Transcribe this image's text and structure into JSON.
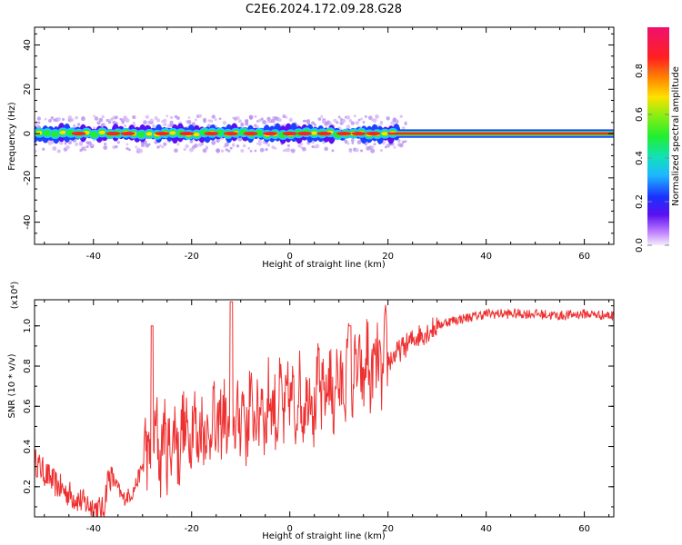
{
  "title": "C2E6.2024.172.09.28.G28",
  "chart_data": [
    {
      "type": "heatmap",
      "xlabel": "Height of straight line (km)",
      "ylabel": "Frequency (Hz)",
      "xlim": [
        -52,
        66
      ],
      "ylim": [
        -50,
        48
      ],
      "xticks": [
        -40,
        -20,
        0,
        20,
        40,
        60
      ],
      "yticks": [
        -40,
        -20,
        0,
        20,
        40
      ],
      "colorbar": {
        "label": "Normalized spectral amplitude",
        "range": [
          0.0,
          1.0
        ],
        "ticks": [
          0.0,
          0.2,
          0.4,
          0.6,
          0.8
        ],
        "colormap": "rainbow (purple-blue-cyan-green-yellow-red-magenta)"
      },
      "annotations": [
        "Spectral band centred near 0 Hz; broad (about ±4 Hz) and patchy below 20 km, narrow (about ±1.5 Hz) and steady above 20 km"
      ]
    },
    {
      "type": "line",
      "xlabel": "Height of straight line (km)",
      "ylabel": "SNR (10 * v/v)",
      "y_multiplier": "(x10⁴)",
      "xlim": [
        -52,
        66
      ],
      "ylim": [
        0.05,
        1.13
      ],
      "xticks": [
        -40,
        -20,
        0,
        20,
        40,
        60
      ],
      "yticks": [
        0.2,
        0.4,
        0.6,
        0.8,
        1.0
      ],
      "series": [
        {
          "color": "#ee3030",
          "x": [
            -52,
            -50,
            -48,
            -46,
            -44,
            -42,
            -40,
            -38,
            -37,
            -36,
            -34,
            -32,
            -30,
            -28,
            -26,
            -24,
            -22,
            -20,
            -18,
            -16,
            -14,
            -12,
            -10,
            -8,
            -6,
            -4,
            -2,
            0,
            2,
            4,
            6,
            8,
            10,
            12,
            14,
            16,
            18,
            20,
            22,
            24,
            26,
            28,
            30,
            32,
            34,
            36,
            38,
            40,
            45,
            50,
            55,
            60,
            66
          ],
          "y": [
            0.33,
            0.27,
            0.22,
            0.18,
            0.15,
            0.12,
            0.1,
            0.08,
            0.25,
            0.24,
            0.14,
            0.17,
            0.3,
            0.45,
            0.4,
            0.42,
            0.45,
            0.5,
            0.47,
            0.5,
            0.52,
            0.55,
            0.55,
            0.56,
            0.58,
            0.6,
            0.6,
            0.62,
            0.63,
            0.65,
            0.67,
            0.68,
            0.7,
            0.74,
            0.76,
            0.78,
            0.8,
            0.82,
            0.87,
            0.91,
            0.95,
            0.97,
            1.0,
            1.02,
            1.03,
            1.04,
            1.05,
            1.06,
            1.06,
            1.06,
            1.05,
            1.06,
            1.05
          ]
        }
      ]
    }
  ]
}
